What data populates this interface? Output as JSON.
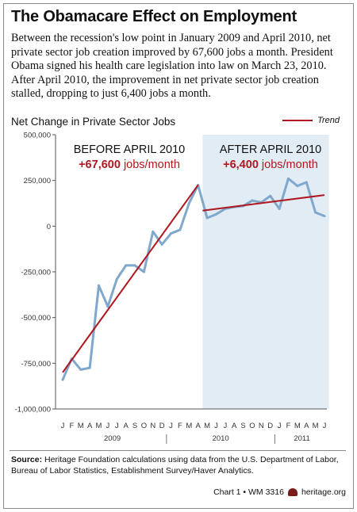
{
  "header": {
    "title": "The Obamacare Effect on Employment",
    "intro": "Between the recession's low point in January 2009 and April 2010, net private sector job creation improved by 67,600 jobs a month. President Obama signed his health care legislation into law on March 23, 2010. After April 2010, the improvement in net private sector job creation stalled, dropping to just 6,400 jobs a month."
  },
  "chart_data": {
    "type": "line",
    "title": "Net Change in Private Sector Jobs",
    "legend": {
      "label": "Trend",
      "placement": "top-right"
    },
    "ylim": [
      -1000000,
      500000
    ],
    "y_ticks": [
      500000,
      250000,
      0,
      -250000,
      -500000,
      -750000,
      -1000000
    ],
    "y_tick_labels": [
      "500,000",
      "250,000",
      "0",
      "-250,000",
      "-500,000",
      "-750,000",
      "-1,000,000"
    ],
    "x_month_labels": [
      "J",
      "F",
      "M",
      "A",
      "M",
      "J",
      "J",
      "A",
      "S",
      "O",
      "N",
      "D",
      "J",
      "F",
      "M",
      "A",
      "M",
      "J",
      "J",
      "A",
      "S",
      "O",
      "N",
      "D",
      "J",
      "F",
      "M",
      "A",
      "M",
      "J"
    ],
    "x_year_labels": [
      {
        "label": "2009",
        "index": 5.5
      },
      {
        "label": "2010",
        "index": 17.5
      },
      {
        "label": "2011",
        "index": 26.5
      }
    ],
    "series": [
      {
        "values": [
          -840000,
          -725000,
          -785000,
          -775000,
          -325000,
          -440000,
          -290000,
          -215000,
          -215000,
          -250000,
          -30000,
          -100000,
          -40000,
          -20000,
          125000,
          225000,
          45000,
          65000,
          95000,
          105000,
          110000,
          140000,
          130000,
          165000,
          95000,
          260000,
          220000,
          240000,
          75000,
          55000
        ],
        "color": "#7fa8cc"
      }
    ],
    "trends": [
      {
        "from_index": 0,
        "to_index": 15,
        "from_value": -800000,
        "to_value": 225000,
        "color": "#b0171f"
      },
      {
        "from_index": 15.5,
        "to_index": 29,
        "from_value": 85000,
        "to_value": 170000,
        "color": "#b0171f"
      }
    ],
    "shaded_region": {
      "from_index": 15.5,
      "to_index": 29.5,
      "color": "#e2ecf4"
    },
    "annotations": [
      {
        "heading": "BEFORE APRIL 2010",
        "value": "+67,600",
        "unit": "jobs/month"
      },
      {
        "heading": "AFTER APRIL 2010",
        "value": "+6,400",
        "unit": "jobs/month"
      }
    ]
  },
  "footer": {
    "source_label": "Source:",
    "source_text": "Heritage Foundation calculations using data from the U.S. Department of Labor, Bureau of Labor Statistics, Establishment Survey/Haver Analytics.",
    "credit": "Chart 1 • WM 3316",
    "site": "heritage.org"
  }
}
